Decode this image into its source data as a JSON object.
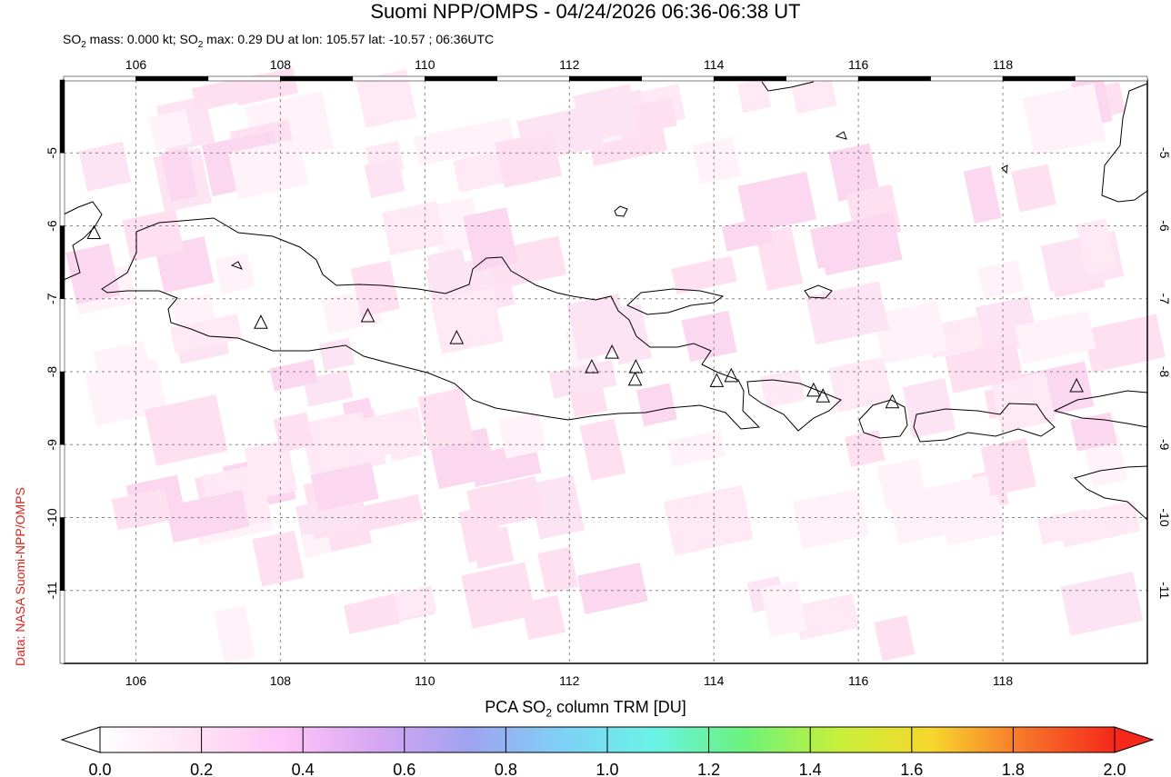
{
  "header": {
    "title": "Suomi NPP/OMPS - 04/24/2026 06:36-06:38 UT",
    "subtitle_prefix": "SO",
    "subtitle_sub": "2",
    "subtitle_mid": " mass: 0.000 kt; SO",
    "subtitle_sub2": "2",
    "subtitle_rest": " max: 0.29 DU at lon: 105.57 lat: -10.57 ; 06:36UTC"
  },
  "credit": "Data: NASA Suomi-NPP/OMPS",
  "map": {
    "lon_range": [
      105,
      120
    ],
    "lat_range": [
      -12,
      -4
    ],
    "lon_ticks": [
      "106",
      "108",
      "110",
      "112",
      "114",
      "116",
      "118"
    ],
    "lat_ticks": [
      "-5",
      "-6",
      "-7",
      "-8",
      "-9",
      "-10",
      "-11"
    ],
    "volcano_marker": "triangle-outline",
    "volcanoes": [
      [
        107.73,
        -7.33
      ],
      [
        109.21,
        -7.24
      ],
      [
        110.44,
        -7.54
      ],
      [
        112.31,
        -7.94
      ],
      [
        112.59,
        -7.74
      ],
      [
        112.92,
        -7.94
      ],
      [
        112.91,
        -8.11
      ],
      [
        114.04,
        -8.13
      ],
      [
        114.24,
        -8.06
      ],
      [
        115.38,
        -8.26
      ],
      [
        115.51,
        -8.34
      ],
      [
        116.47,
        -8.42
      ],
      [
        119.02,
        -8.2
      ],
      [
        105.42,
        -6.1
      ]
    ]
  },
  "colorbar": {
    "label_prefix": "PCA SO",
    "label_sub": "2",
    "label_rest": " column TRM [DU]",
    "ticks": [
      "0.0",
      "0.2",
      "0.4",
      "0.6",
      "0.8",
      "1.0",
      "1.2",
      "1.4",
      "1.6",
      "1.8",
      "2.0"
    ],
    "range": [
      0,
      2
    ],
    "colors": [
      "#ffffff",
      "#ffe3f4",
      "#ffc4f8",
      "#d6a6f2",
      "#9fa3f0",
      "#7fd0f6",
      "#69f3e6",
      "#6cf27a",
      "#c6f03a",
      "#f7d72c",
      "#f7762a",
      "#f5281a"
    ]
  }
}
